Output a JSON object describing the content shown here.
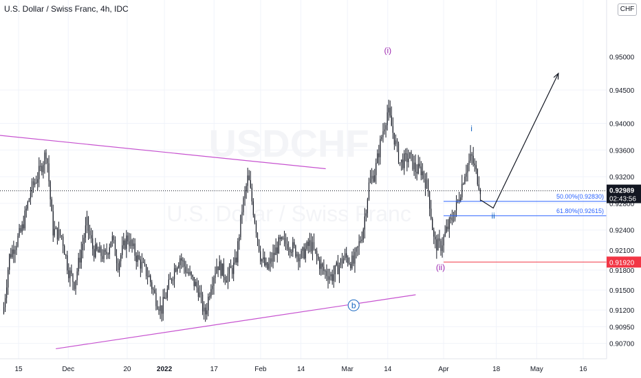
{
  "chart_data": {
    "type": "candlestick",
    "title": "U.S. Dollar / Swiss Franc, 4h, IDC",
    "currency": "CHF",
    "watermark": "USDCHF",
    "watermark_sub": "U.S. Dollar / Swiss Franc",
    "ylim": [
      0.9047,
      0.9585
    ],
    "y_ticks": [
      "0.94500",
      "0.94000",
      "0.93600",
      "0.93200",
      "0.92800",
      "0.92400",
      "0.92100",
      "0.91800",
      "0.91500",
      "0.91200",
      "0.90950",
      "0.90700"
    ],
    "y_tick_values": [
      0.945,
      0.94,
      0.936,
      0.932,
      0.928,
      0.924,
      0.921,
      0.918,
      0.915,
      0.912,
      0.9095,
      0.907
    ],
    "top_partial_tick": "0.95000",
    "x_ticks": [
      {
        "label": "15",
        "date": "2021-11-15"
      },
      {
        "label": "Dec",
        "date": "2021-12-01"
      },
      {
        "label": "20",
        "date": "2021-12-20"
      },
      {
        "label": "2022",
        "date": "2022-01-01"
      },
      {
        "label": "17",
        "date": "2022-01-17"
      },
      {
        "label": "Feb",
        "date": "2022-02-01"
      },
      {
        "label": "14",
        "date": "2022-02-14"
      },
      {
        "label": "Mar",
        "date": "2022-03-01"
      },
      {
        "label": "14",
        "date": "2022-03-14"
      },
      {
        "label": "Apr",
        "date": "2022-04-01"
      },
      {
        "label": "18",
        "date": "2022-04-18"
      },
      {
        "label": "May",
        "date": "2022-05-01"
      },
      {
        "label": "16",
        "date": "2022-05-16"
      }
    ],
    "price_path": [
      [
        "2021-11-10",
        0.9115
      ],
      [
        "2021-11-12",
        0.92
      ],
      [
        "2021-11-16",
        0.924
      ],
      [
        "2021-11-19",
        0.93
      ],
      [
        "2021-11-22",
        0.933
      ],
      [
        "2021-11-24",
        0.936
      ],
      [
        "2021-11-26",
        0.924
      ],
      [
        "2021-11-29",
        0.923
      ],
      [
        "2021-12-01",
        0.918
      ],
      [
        "2021-12-03",
        0.916
      ],
      [
        "2021-12-07",
        0.925
      ],
      [
        "2021-12-09",
        0.921
      ],
      [
        "2021-12-13",
        0.92
      ],
      [
        "2021-12-15",
        0.923
      ],
      [
        "2021-12-17",
        0.919
      ],
      [
        "2021-12-20",
        0.923
      ],
      [
        "2021-12-23",
        0.92
      ],
      [
        "2021-12-27",
        0.917
      ],
      [
        "2021-12-29",
        0.914
      ],
      [
        "2021-12-31",
        0.912
      ],
      [
        "2022-01-04",
        0.918
      ],
      [
        "2022-01-06",
        0.92
      ],
      [
        "2022-01-08",
        0.918
      ],
      [
        "2022-01-12",
        0.915
      ],
      [
        "2022-01-14",
        0.911
      ],
      [
        "2022-01-16",
        0.916
      ],
      [
        "2022-01-18",
        0.919
      ],
      [
        "2022-01-21",
        0.917
      ],
      [
        "2022-01-24",
        0.919
      ],
      [
        "2022-01-26",
        0.927
      ],
      [
        "2022-01-28",
        0.932
      ],
      [
        "2022-02-01",
        0.92
      ],
      [
        "2022-02-03",
        0.918
      ],
      [
        "2022-02-07",
        0.922
      ],
      [
        "2022-02-10",
        0.922
      ],
      [
        "2022-02-14",
        0.92
      ],
      [
        "2022-02-17",
        0.922
      ],
      [
        "2022-02-21",
        0.918
      ],
      [
        "2022-02-24",
        0.917
      ],
      [
        "2022-02-28",
        0.92
      ],
      [
        "2022-03-03",
        0.919
      ],
      [
        "2022-03-06",
        0.924
      ],
      [
        "2022-03-08",
        0.931
      ],
      [
        "2022-03-10",
        0.933
      ],
      [
        "2022-03-12",
        0.938
      ],
      [
        "2022-03-14",
        0.942
      ],
      [
        "2022-03-16",
        0.938
      ],
      [
        "2022-03-18",
        0.934
      ],
      [
        "2022-03-21",
        0.935
      ],
      [
        "2022-03-23",
        0.933
      ],
      [
        "2022-03-25",
        0.933
      ],
      [
        "2022-03-27",
        0.93
      ],
      [
        "2022-03-29",
        0.922
      ],
      [
        "2022-03-31",
        0.9215
      ],
      [
        "2022-04-02",
        0.924
      ],
      [
        "2022-04-04",
        0.926
      ],
      [
        "2022-04-06",
        0.929
      ],
      [
        "2022-04-08",
        0.933
      ],
      [
        "2022-04-10",
        0.935
      ],
      [
        "2022-04-13",
        0.93
      ]
    ],
    "current_price": {
      "label": "0.92989",
      "countdown": "02:43:56",
      "value": 0.92989
    },
    "levels": [
      {
        "label": "50.00%(0.92830)",
        "value": 0.9283,
        "color": "#2962ff"
      },
      {
        "label": "61.80%(0.92615)",
        "value": 0.92615,
        "color": "#2962ff"
      },
      {
        "label": "0.91920",
        "value": 0.9192,
        "color": "#f23645"
      }
    ],
    "trendlines": [
      {
        "from": [
          "2021-11-09",
          0.9382
        ],
        "to": [
          "2022-02-22",
          0.9332
        ],
        "color": "#c651cf"
      },
      {
        "from": [
          "2021-11-27",
          0.9062
        ],
        "to": [
          "2022-03-23",
          0.9143
        ],
        "color": "#c651cf"
      }
    ],
    "projection": [
      [
        "2022-04-13",
        0.9285
      ],
      [
        "2022-04-17",
        0.9273
      ],
      [
        "2022-05-08",
        0.9475
      ]
    ],
    "wave_labels": [
      {
        "text": "(i)",
        "date": "2022-03-14",
        "value": 0.9505,
        "color": "#9c27b0"
      },
      {
        "text": "(ii)",
        "date": "2022-03-31",
        "value": 0.918,
        "color": "#9c27b0"
      },
      {
        "text": "i",
        "date": "2022-04-10",
        "value": 0.9388,
        "color": "#1565c0"
      },
      {
        "text": "ii",
        "date": "2022-04-17",
        "value": 0.9257,
        "color": "#1565c0"
      },
      {
        "text": "b",
        "date": "2022-03-03",
        "value": 0.9123,
        "color": "#1565c0"
      }
    ]
  }
}
